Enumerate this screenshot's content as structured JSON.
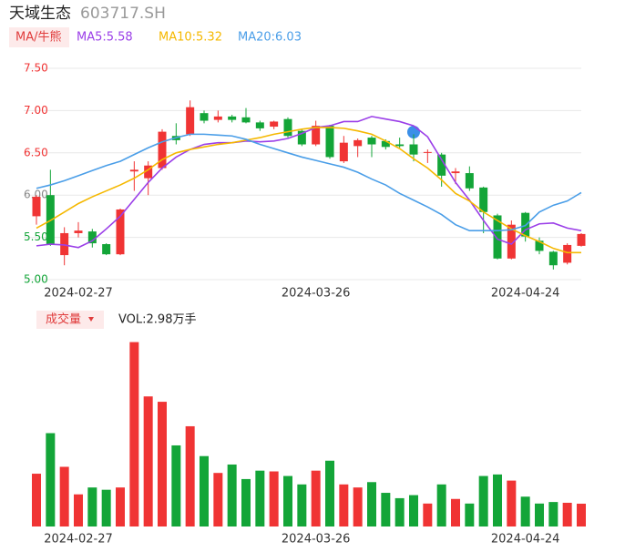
{
  "header": {
    "title": "天域生态",
    "code": "603717.SH",
    "ma_button": "MA/牛熊",
    "vol_button": "成交量",
    "vol_label": "VOL:2.98万手"
  },
  "chart_data": [
    {
      "type": "candlestick",
      "categories": [
        null,
        null,
        null,
        "2024-02-27",
        null,
        null,
        null,
        null,
        null,
        null,
        null,
        null,
        null,
        null,
        null,
        null,
        null,
        null,
        null,
        null,
        "2024-03-26",
        null,
        null,
        null,
        null,
        null,
        null,
        null,
        null,
        null,
        null,
        null,
        null,
        null,
        null,
        "2024-04-24",
        null,
        null,
        null,
        null
      ],
      "open": [
        5.75,
        6.0,
        5.29,
        5.55,
        5.57,
        5.42,
        5.3,
        6.28,
        6.2,
        6.32,
        6.7,
        6.72,
        6.97,
        6.89,
        6.93,
        6.92,
        6.86,
        6.81,
        6.9,
        6.76,
        6.6,
        6.82,
        6.4,
        6.58,
        6.68,
        6.64,
        6.6,
        6.6,
        6.5,
        6.48,
        6.26,
        6.26,
        6.09,
        5.76,
        5.25,
        5.79,
        5.46,
        5.33,
        5.2,
        5.4
      ],
      "high": [
        6.0,
        6.3,
        5.62,
        5.68,
        5.6,
        5.43,
        5.84,
        6.4,
        6.4,
        6.78,
        6.85,
        7.12,
        7.0,
        7.0,
        6.95,
        7.03,
        6.88,
        6.88,
        6.92,
        6.78,
        6.88,
        6.83,
        6.7,
        6.67,
        6.7,
        6.66,
        6.68,
        6.72,
        6.54,
        6.5,
        6.32,
        6.34,
        6.1,
        5.78,
        5.7,
        5.8,
        5.5,
        5.34,
        5.43,
        5.55
      ],
      "low": [
        5.65,
        5.4,
        5.17,
        5.5,
        5.38,
        5.29,
        5.29,
        6.05,
        6.0,
        6.3,
        6.6,
        6.7,
        6.85,
        6.86,
        6.86,
        6.85,
        6.76,
        6.78,
        6.68,
        6.58,
        6.58,
        6.43,
        6.38,
        6.45,
        6.45,
        6.54,
        6.56,
        6.4,
        6.38,
        6.1,
        6.13,
        6.05,
        5.55,
        5.24,
        5.24,
        5.45,
        5.3,
        5.12,
        5.18,
        5.39
      ],
      "close": [
        5.98,
        5.42,
        5.55,
        5.58,
        5.43,
        5.3,
        5.83,
        6.3,
        6.35,
        6.75,
        6.65,
        7.04,
        6.88,
        6.93,
        6.89,
        6.86,
        6.79,
        6.87,
        6.7,
        6.6,
        6.82,
        6.45,
        6.62,
        6.65,
        6.6,
        6.57,
        6.58,
        6.48,
        6.51,
        6.23,
        6.28,
        6.08,
        5.8,
        5.25,
        5.65,
        5.51,
        5.34,
        5.17,
        5.41,
        5.54
      ],
      "up_color": "#f03434",
      "down_color": "#13a538",
      "series": [
        {
          "name": "MA5:5.58",
          "color": "#9b3fe8",
          "values": [
            5.4,
            5.42,
            5.41,
            5.38,
            5.46,
            5.6,
            5.75,
            5.95,
            6.15,
            6.32,
            6.45,
            6.54,
            6.6,
            6.62,
            6.62,
            6.64,
            6.63,
            6.64,
            6.67,
            6.73,
            6.8,
            6.82,
            6.87,
            6.87,
            6.93,
            6.9,
            6.87,
            6.82,
            6.69,
            6.42,
            6.15,
            5.94,
            5.7,
            5.48,
            5.42,
            5.59,
            5.66,
            5.67,
            5.61,
            5.58
          ]
        },
        {
          "name": "MA10:5.32",
          "color": "#f5b800",
          "values": [
            5.61,
            5.7,
            5.8,
            5.9,
            5.98,
            6.05,
            6.12,
            6.2,
            6.3,
            6.42,
            6.5,
            6.54,
            6.57,
            6.6,
            6.62,
            6.65,
            6.68,
            6.72,
            6.75,
            6.78,
            6.8,
            6.8,
            6.79,
            6.76,
            6.72,
            6.64,
            6.55,
            6.43,
            6.32,
            6.18,
            6.02,
            5.93,
            5.8,
            5.7,
            5.6,
            5.52,
            5.45,
            5.37,
            5.32,
            5.32
          ]
        },
        {
          "name": "MA20:6.03",
          "color": "#4a9ee8",
          "values": [
            6.08,
            6.12,
            6.17,
            6.23,
            6.29,
            6.35,
            6.4,
            6.48,
            6.56,
            6.63,
            6.68,
            6.72,
            6.72,
            6.71,
            6.7,
            6.66,
            6.6,
            6.55,
            6.5,
            6.45,
            6.41,
            6.37,
            6.33,
            6.27,
            6.19,
            6.12,
            6.02,
            5.94,
            5.86,
            5.77,
            5.65,
            5.58,
            5.58,
            5.58,
            5.59,
            5.64,
            5.8,
            5.88,
            5.93,
            6.03
          ]
        }
      ],
      "ylim": [
        5.0,
        7.5
      ],
      "yticks": [
        {
          "value": 5.0,
          "label": "5.00"
        },
        {
          "value": 5.5,
          "label": "5.50"
        },
        {
          "value": 6.0,
          "label": "6.00"
        },
        {
          "value": 6.5,
          "label": "6.50"
        },
        {
          "value": 7.0,
          "label": "7.00"
        },
        {
          "value": 7.5,
          "label": "7.50"
        }
      ],
      "ytick_colors": [
        "#13a538",
        "#13a538",
        "#888888",
        "#f03434",
        "#f03434",
        "#f03434"
      ],
      "grid": true
    },
    {
      "type": "bar",
      "categories": [
        null,
        null,
        null,
        "2024-02-27",
        null,
        null,
        null,
        null,
        null,
        null,
        null,
        null,
        null,
        null,
        null,
        null,
        null,
        null,
        null,
        null,
        "2024-03-26",
        null,
        null,
        null,
        null,
        null,
        null,
        null,
        null,
        null,
        null,
        null,
        null,
        null,
        null,
        "2024-04-24",
        null,
        null,
        null,
        null
      ],
      "values": [
        6.9,
        12.2,
        7.8,
        4.2,
        5.1,
        4.8,
        5.1,
        24.1,
        17.0,
        16.3,
        10.6,
        13.1,
        9.2,
        7.0,
        8.1,
        6.2,
        7.3,
        7.2,
        6.6,
        5.5,
        7.3,
        8.6,
        5.5,
        5.1,
        5.8,
        4.4,
        3.7,
        4.1,
        3.0,
        5.5,
        3.6,
        3.0,
        6.6,
        6.8,
        6.0,
        3.9,
        3.0,
        3.2,
        3.1,
        2.98
      ],
      "ylim": [
        0,
        25
      ]
    }
  ]
}
